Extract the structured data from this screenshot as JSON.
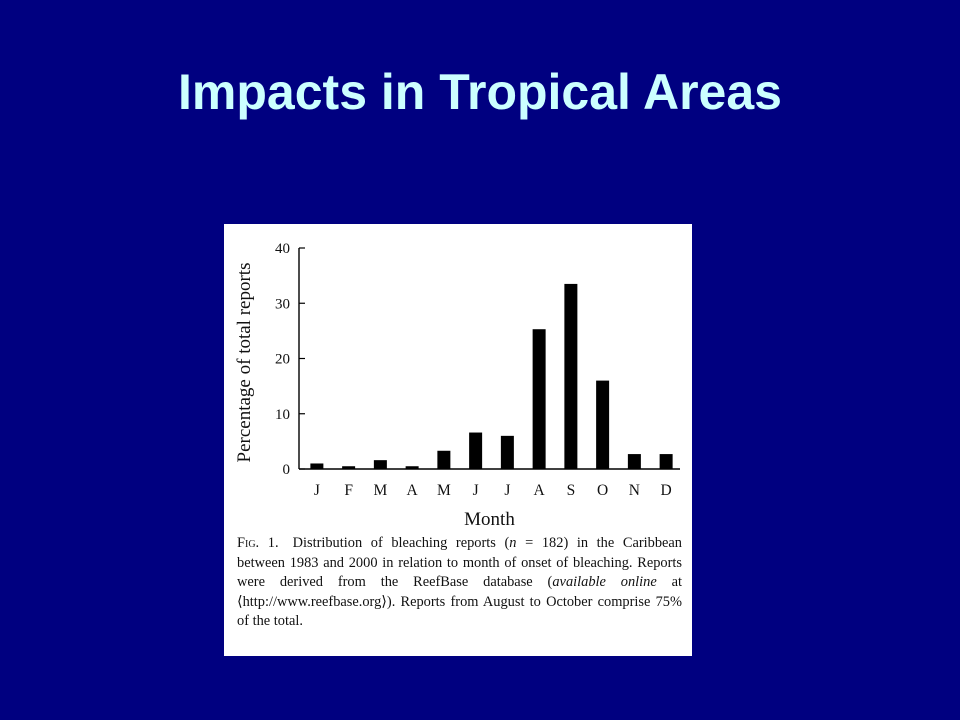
{
  "slide": {
    "title": "Impacts in Tropical Areas"
  },
  "colors": {
    "background": "#000080",
    "title": "#ccffff",
    "bars": "#000000",
    "panel": "#ffffff"
  },
  "chart_data": {
    "type": "bar",
    "categories": [
      "J",
      "F",
      "M",
      "A",
      "M",
      "J",
      "J",
      "A",
      "S",
      "O",
      "N",
      "D"
    ],
    "values": [
      1,
      0.5,
      1.6,
      0.5,
      3.3,
      6.6,
      6,
      25.3,
      33.5,
      16,
      2.7,
      2.7
    ],
    "xlabel": "Month",
    "ylabel": "Percentage of total reports",
    "ylim": [
      0,
      40
    ],
    "yticks": [
      "0",
      "10",
      "20",
      "30",
      "40"
    ],
    "grid": false,
    "legend": "none"
  },
  "caption": {
    "label": "Fig. 1.",
    "part1": "Distribution of bleaching reports (",
    "n_symbol": "n",
    "part2": " = 182) in the Caribbean between 1983 and 2000 in relation to month of onset of bleaching. Reports were derived from the ReefBase database (",
    "avail": "available online",
    "part3": " at ⟨http://www.reefbase.org⟩). Reports from August to October comprise 75% of the total."
  }
}
